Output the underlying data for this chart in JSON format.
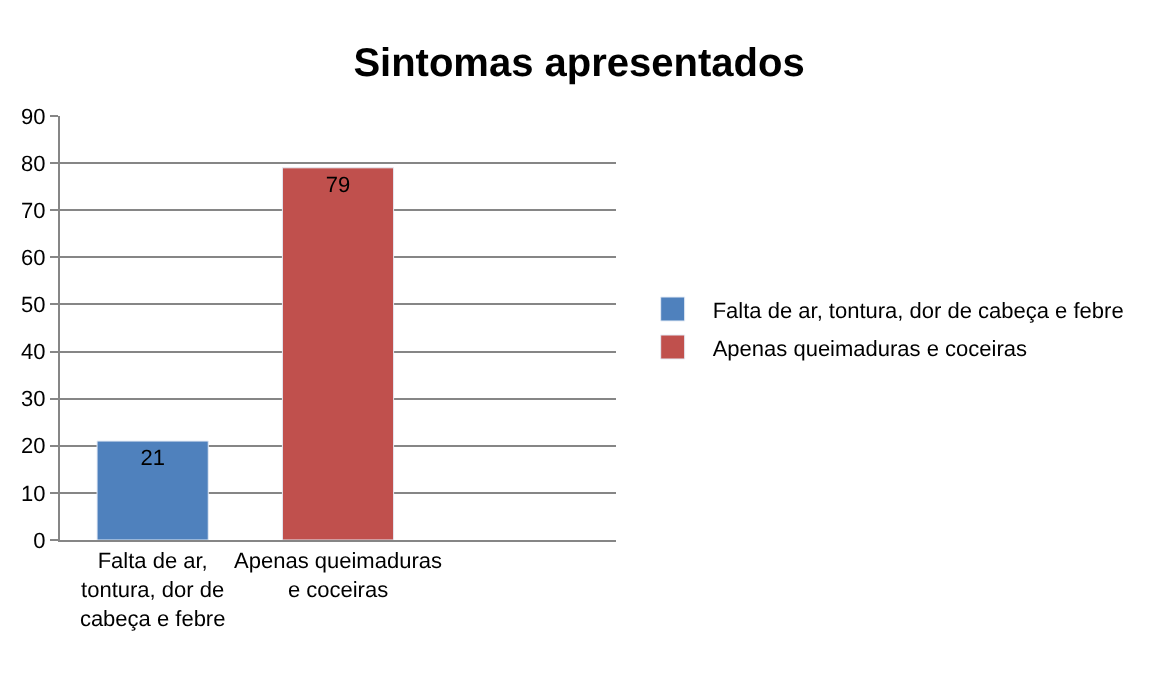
{
  "chart_data": {
    "type": "bar",
    "title": "Sintomas apresentados",
    "categories": [
      "Falta de ar, tontura, dor de cabeça e febre",
      "Apenas queimaduras e coceiras",
      null
    ],
    "series": [
      {
        "name": "Falta de ar, tontura, dor de cabeça e febre",
        "color": "#4f81bd",
        "values": [
          21,
          null,
          null
        ]
      },
      {
        "name": "Apenas queimaduras e coceiras",
        "color": "#c0504d",
        "values": [
          null,
          79,
          null
        ]
      }
    ],
    "ylim": [
      0,
      90
    ],
    "yticks": [
      0,
      10,
      20,
      30,
      40,
      50,
      60,
      70,
      80,
      90
    ],
    "grid": "y",
    "legend": "right",
    "data_labels": true
  }
}
